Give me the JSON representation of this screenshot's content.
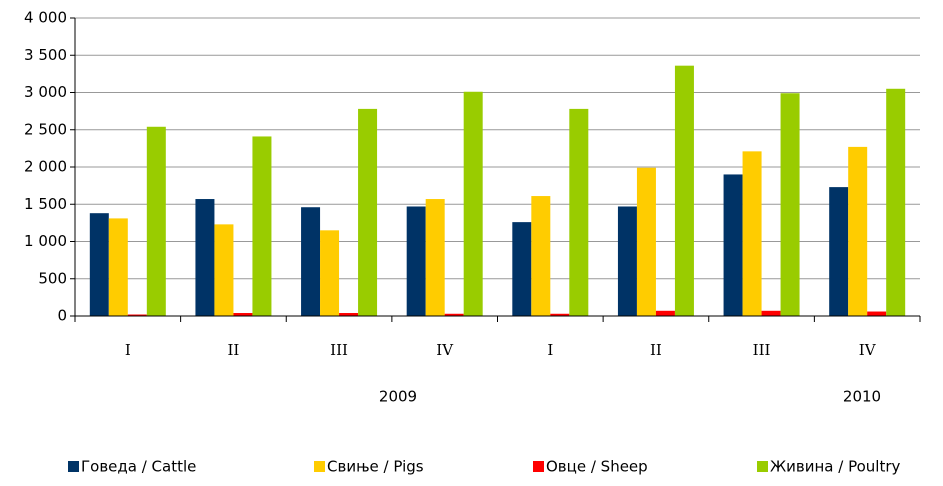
{
  "chart_data": {
    "type": "bar",
    "categories": [
      "I",
      "II",
      "III",
      "IV",
      "I",
      "II",
      "III",
      "IV"
    ],
    "x_groups": [
      "2009",
      "2010"
    ],
    "series": [
      {
        "name": "Говеда / Cattle",
        "color": "#003366",
        "values": [
          1380,
          1570,
          1460,
          1470,
          1260,
          1470,
          1900,
          1730
        ]
      },
      {
        "name": "Свиње / Pigs",
        "color": "#ffcc00",
        "values": [
          1310,
          1230,
          1150,
          1570,
          1610,
          1990,
          2210,
          2270
        ]
      },
      {
        "name": "Овце / Sheep",
        "color": "#ff0000",
        "values": [
          20,
          40,
          40,
          30,
          30,
          70,
          70,
          60
        ]
      },
      {
        "name": "Живина / Poultry",
        "color": "#99cc00",
        "values": [
          2540,
          2410,
          2780,
          3010,
          2780,
          3360,
          2990,
          3050
        ]
      }
    ],
    "ylim": [
      0,
      4000
    ],
    "yticks": [
      0,
      500,
      {
        "value": 1000,
        "label": "1 000"
      },
      {
        "value": 1500,
        "label": "1 500"
      },
      {
        "value": 2000,
        "label": "2 000"
      },
      {
        "value": 2500,
        "label": "2 500"
      },
      {
        "value": 3000,
        "label": "3 000"
      },
      {
        "value": 3500,
        "label": "3 500"
      },
      {
        "value": 4000,
        "label": "4 000"
      }
    ],
    "grid": true,
    "legend": "bottom"
  }
}
